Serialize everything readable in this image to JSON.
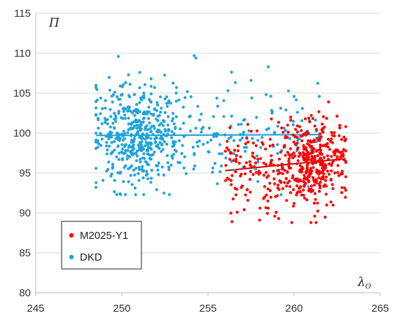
{
  "chart_data": {
    "type": "scatter",
    "title": "",
    "xlabel": "λ",
    "xlabel_subscript": "ʘ",
    "ylabel": "П",
    "xlim": [
      245,
      265
    ],
    "ylim": [
      80,
      115
    ],
    "xticks": [
      "245",
      "250",
      "255",
      "260",
      "265"
    ],
    "yticks": [
      "80",
      "85",
      "90",
      "95",
      "100",
      "105",
      "110",
      "115"
    ],
    "grid": "horizontal",
    "legend_position": "bottom-left",
    "series": [
      {
        "name": "M2025-Y1",
        "color": "#ff0000",
        "x_range": [
          256.0,
          263.0
        ],
        "y_range": [
          88.8,
          103.9
        ],
        "count": 500,
        "trendline": {
          "x": [
            256.0,
            263.0
          ],
          "y": [
            95.3,
            96.8
          ],
          "color": "#cc0000"
        },
        "points": [
          [
            256.4,
            88.9
          ],
          [
            257.1,
            90.4
          ],
          [
            258.0,
            89.1
          ],
          [
            258.5,
            90.6
          ],
          [
            259.1,
            89.3
          ],
          [
            260.0,
            91.2
          ],
          [
            261.2,
            89.6
          ],
          [
            261.9,
            91.0
          ],
          [
            262.0,
            103.9
          ],
          [
            261.0,
            102.2
          ],
          [
            259.8,
            102.0
          ],
          [
            258.2,
            98.6
          ],
          [
            262.9,
            99.5
          ],
          [
            257.6,
            97.5
          ]
        ]
      },
      {
        "name": "DKD",
        "color": "#1fa3dc",
        "x_range": [
          248.5,
          261.5
        ],
        "y_range": [
          92.3,
          109.8
        ],
        "count": 650,
        "trendline": {
          "x": [
            248.5,
            261.5
          ],
          "y": [
            99.7,
            99.8
          ],
          "color": "#1f9bd6"
        },
        "points": [
          [
            249.8,
            109.6
          ],
          [
            254.2,
            109.7
          ],
          [
            254.3,
            109.4
          ],
          [
            258.5,
            108.3
          ],
          [
            251.7,
            106.8
          ],
          [
            253.8,
            105.2
          ],
          [
            257.5,
            106.6
          ],
          [
            260.0,
            104.6
          ],
          [
            249.9,
            92.4
          ],
          [
            248.5,
            93.2
          ]
        ]
      }
    ]
  }
}
